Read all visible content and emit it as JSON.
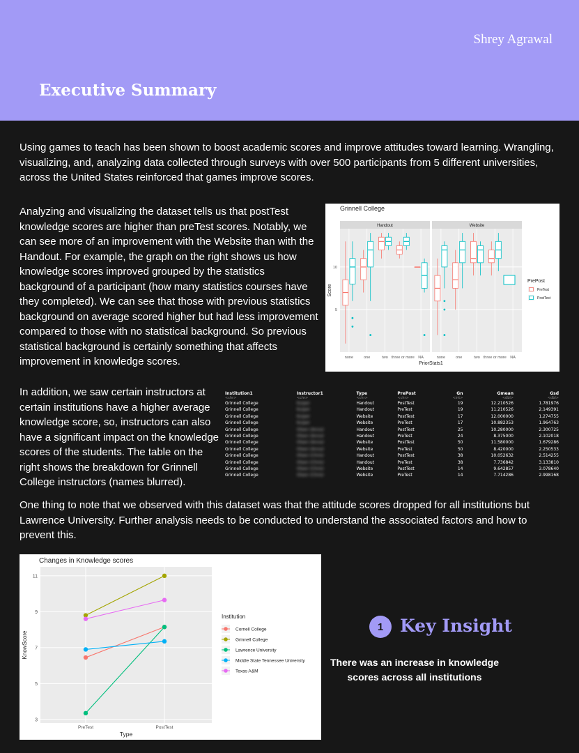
{
  "header": {
    "author": "Shrey Agrawal",
    "title": "Executive Summary",
    "bg_color": "#a29af6"
  },
  "paragraphs": {
    "intro": "Using games to teach has been shown to boost academic scores and improve attitudes toward learning. Wrangling, visualizing, and, analyzing data collected through surveys with over 500 participants from 5 different universities, across the United States reinforced that games improve scores.",
    "analysis": "Analyzing and visualizing the dataset tells us that postTest knowledge scores are higher than preTest scores. Notably, we can see more of an improvement with the Website than with the Handout. For example, the graph on the right shows us how knowledge scores improved grouped by the statistics background of a participant (how many statistics courses have they completed). We can see that those with previous statistics background on average scored higher but had less improvement compared to those with no statistical background. So previous statistical background is certainly something that affects improvement in knowledge scores.",
    "instructors": "In addition, we saw certain instructors at certain institutions have a higher average knowledge score, so, instructors can also have a significant impact on the knowledge scores of the students. The table on the right shows the breakdown for Grinnell College instructors (names blurred).",
    "attitude": "One thing to note that we observed with this dataset was that the attitude scores dropped for all institutions but Lawrence University. Further analysis needs to be conducted to understand the associated factors and how to prevent this."
  },
  "table": {
    "columns": [
      "Institution1",
      "Instructor1",
      "Type",
      "PrePost",
      "Gn",
      "Gmean",
      "Gsd"
    ],
    "types": [
      "<chr>",
      "<chr>",
      "<chr>",
      "<chr>",
      "<int>",
      "<dbl>",
      "<dbl>"
    ],
    "rows": [
      [
        "Grinnell College",
        "Kuiper",
        "Handout",
        "PostTest",
        "19",
        "12.210526",
        "1.781976"
      ],
      [
        "Grinnell College",
        "Kuiper",
        "Handout",
        "PreTest",
        "19",
        "11.210526",
        "2.149391"
      ],
      [
        "Grinnell College",
        "Kuiper",
        "Website",
        "PostTest",
        "17",
        "12.000000",
        "1.274755"
      ],
      [
        "Grinnell College",
        "Kuiper",
        "Website",
        "PreTest",
        "17",
        "10.882353",
        "1.964763"
      ],
      [
        "Grinnell College",
        "Olsen (Anna)",
        "Handout",
        "PostTest",
        "25",
        "10.280000",
        "2.300725"
      ],
      [
        "Grinnell College",
        "Olsen (Anna)",
        "Handout",
        "PreTest",
        "24",
        "8.375000",
        "2.102018"
      ],
      [
        "Grinnell College",
        "Olsen (Anna)",
        "Website",
        "PostTest",
        "50",
        "11.580000",
        "1.679286"
      ],
      [
        "Grinnell College",
        "Olsen (Anna)",
        "Website",
        "PreTest",
        "50",
        "8.420000",
        "2.250533"
      ],
      [
        "Grinnell College",
        "Olsen (Chris)",
        "Handout",
        "PostTest",
        "38",
        "10.052632",
        "2.514255"
      ],
      [
        "Grinnell College",
        "Olsen (Chris)",
        "Handout",
        "PreTest",
        "38",
        "7.736842",
        "3.133810"
      ],
      [
        "Grinnell College",
        "Olsen (Chris)",
        "Website",
        "PostTest",
        "14",
        "9.642857",
        "3.078640"
      ],
      [
        "Grinnell College",
        "Olsen (Chris)",
        "Website",
        "PreTest",
        "14",
        "7.714286",
        "2.998168"
      ]
    ]
  },
  "insight": {
    "number": "1",
    "title": "Key Insight",
    "text": "There was an increase in knowledge scores across all institutions"
  },
  "chart_data": [
    {
      "type": "boxplot",
      "title": "Grinnell College",
      "xlabel": "PriorStats1",
      "ylabel": "Score",
      "facets": [
        "Handout",
        "Website"
      ],
      "categories": [
        "none",
        "one",
        "two",
        "three or more",
        "NA"
      ],
      "x_tick_labels": [
        "none",
        "one",
        "two",
        "three or more",
        "NA"
      ],
      "y_ticks": [
        5,
        10
      ],
      "ylim": [
        0,
        14.5
      ],
      "legend_title": "PrePost",
      "legend_position": "right",
      "series": [
        {
          "name": "PreTest",
          "color": "#f8766d"
        },
        {
          "name": "PostTest",
          "color": "#00bfc4"
        }
      ],
      "boxes": [
        {
          "facet": "Handout",
          "category": "none",
          "series": "PreTest",
          "whisker_low": 1,
          "q1": 5.5,
          "median": 7,
          "q3": 8.5,
          "whisker_high": 13
        },
        {
          "facet": "Handout",
          "category": "none",
          "series": "PostTest",
          "whisker_low": 6,
          "q1": 8,
          "median": 10,
          "q3": 11,
          "whisker_high": 13,
          "outliers": [
            4,
            3
          ]
        },
        {
          "facet": "Handout",
          "category": "one",
          "series": "PreTest",
          "whisker_low": 7,
          "q1": 8.5,
          "median": 10,
          "q3": 11,
          "whisker_high": 12
        },
        {
          "facet": "Handout",
          "category": "one",
          "series": "PostTest",
          "whisker_low": 6,
          "q1": 10,
          "median": 12,
          "q3": 13,
          "whisker_high": 14,
          "outliers": [
            2
          ]
        },
        {
          "facet": "Handout",
          "category": "two",
          "series": "PreTest",
          "whisker_low": 11,
          "q1": 12,
          "median": 13,
          "q3": 13.5,
          "whisker_high": 14
        },
        {
          "facet": "Handout",
          "category": "two",
          "series": "PostTest",
          "whisker_low": 12,
          "q1": 12.5,
          "median": 13,
          "q3": 13.5,
          "whisker_high": 14
        },
        {
          "facet": "Handout",
          "category": "three or more",
          "series": "PreTest",
          "whisker_low": 11,
          "q1": 11.5,
          "median": 12,
          "q3": 12.5,
          "whisker_high": 13
        },
        {
          "facet": "Handout",
          "category": "three or more",
          "series": "PostTest",
          "whisker_low": 12,
          "q1": 12.5,
          "median": 13,
          "q3": 13.5,
          "whisker_high": 14
        },
        {
          "facet": "Handout",
          "category": "NA",
          "series": "PreTest",
          "whisker_low": 10,
          "q1": 10,
          "median": 10,
          "q3": 10,
          "whisker_high": 10
        },
        {
          "facet": "Handout",
          "category": "NA",
          "series": "PostTest",
          "whisker_low": 7,
          "q1": 7.5,
          "median": 9,
          "q3": 10.5,
          "whisker_high": 11,
          "outliers": [
            2
          ]
        },
        {
          "facet": "Website",
          "category": "none",
          "series": "PreTest",
          "whisker_low": 2,
          "q1": 6,
          "median": 7.5,
          "q3": 9,
          "whisker_high": 11
        },
        {
          "facet": "Website",
          "category": "none",
          "series": "PostTest",
          "whisker_low": 7.5,
          "q1": 10,
          "median": 12,
          "q3": 12.5,
          "whisker_high": 13,
          "outliers": [
            6,
            5,
            2
          ]
        },
        {
          "facet": "Website",
          "category": "one",
          "series": "PreTest",
          "whisker_low": 5,
          "q1": 7.5,
          "median": 8.5,
          "q3": 10.5,
          "whisker_high": 12
        },
        {
          "facet": "Website",
          "category": "one",
          "series": "PostTest",
          "whisker_low": 7.5,
          "q1": 10.5,
          "median": 12,
          "q3": 13,
          "whisker_high": 14
        },
        {
          "facet": "Website",
          "category": "two",
          "series": "PreTest",
          "whisker_low": 9,
          "q1": 10.5,
          "median": 11,
          "q3": 13,
          "whisker_high": 14
        },
        {
          "facet": "Website",
          "category": "two",
          "series": "PostTest",
          "whisker_low": 9,
          "q1": 10.5,
          "median": 12,
          "q3": 12.5,
          "whisker_high": 13
        },
        {
          "facet": "Website",
          "category": "three or more",
          "series": "PreTest",
          "whisker_low": 9,
          "q1": 10.5,
          "median": 11,
          "q3": 12,
          "whisker_high": 13
        },
        {
          "facet": "Website",
          "category": "three or more",
          "series": "PostTest",
          "whisker_low": 9.5,
          "q1": 11,
          "median": 12,
          "q3": 13,
          "whisker_high": 14
        }
      ],
      "grid": true
    },
    {
      "type": "line",
      "title": "Changes in Knowledge scores",
      "xlabel": "Type",
      "ylabel": "KnowScore",
      "categories": [
        "PreTest",
        "PostTest"
      ],
      "y_ticks": [
        3,
        5,
        7,
        9,
        11
      ],
      "ylim": [
        2.8,
        11.5
      ],
      "legend_title": "Institution",
      "legend_position": "right",
      "grid": true,
      "series": [
        {
          "name": "Cornell College",
          "color": "#f8766d",
          "values": [
            6.45,
            8.15
          ]
        },
        {
          "name": "Grinnell College",
          "color": "#a3a500",
          "values": [
            8.8,
            11.0
          ]
        },
        {
          "name": "Lawrence University",
          "color": "#00bf7d",
          "values": [
            3.35,
            8.15
          ]
        },
        {
          "name": "Middle State Tennessee University",
          "color": "#00b0f6",
          "values": [
            6.9,
            7.35
          ]
        },
        {
          "name": "Texas A&M",
          "color": "#e76bf3",
          "values": [
            8.6,
            9.65
          ]
        }
      ]
    }
  ]
}
